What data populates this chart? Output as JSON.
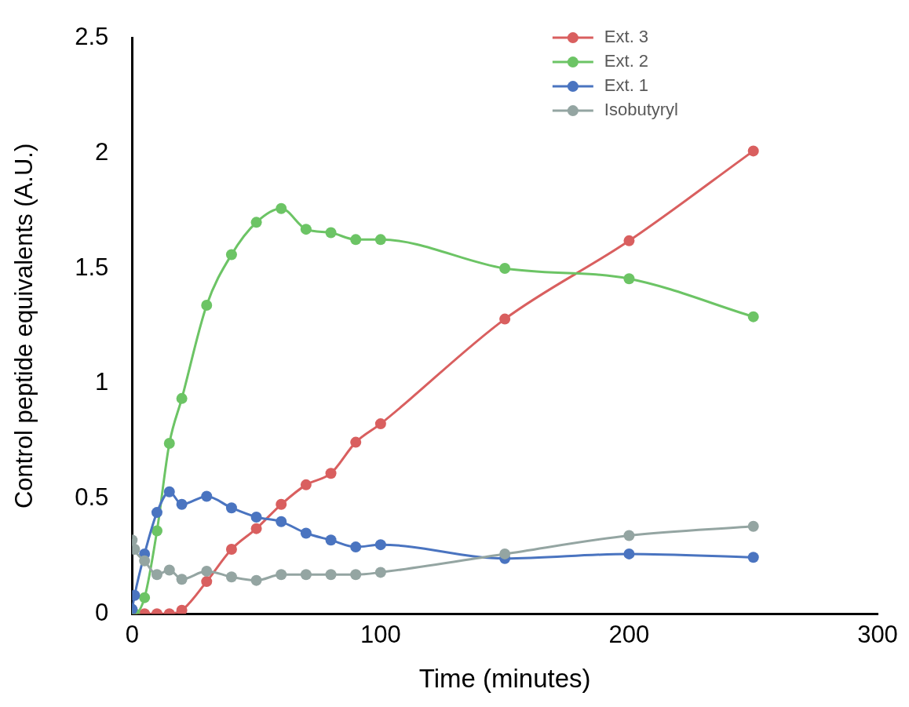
{
  "chart_data": {
    "type": "line",
    "xlabel": "Time (minutes)",
    "ylabel": "Control peptide equivalents (A.U.)",
    "x": [
      0,
      1,
      5,
      10,
      15,
      20,
      30,
      40,
      50,
      60,
      70,
      80,
      90,
      100,
      150,
      200,
      250
    ],
    "series": [
      {
        "name": "Ext. 3",
        "color": "#d95f5f",
        "values": [
          0,
          0,
          0,
          0,
          0,
          0.015,
          0.14,
          0.28,
          0.37,
          0.475,
          0.56,
          0.61,
          0.745,
          0.825,
          1.28,
          1.62,
          2.01
        ]
      },
      {
        "name": "Ext. 2",
        "color": "#6cc465",
        "values": [
          0,
          0,
          0.07,
          0.36,
          0.74,
          0.935,
          1.34,
          1.56,
          1.7,
          1.76,
          1.67,
          1.655,
          1.625,
          1.625,
          1.5,
          1.455,
          1.29
        ]
      },
      {
        "name": "Ext. 1",
        "color": "#4a74c0",
        "values": [
          0.02,
          0.08,
          0.26,
          0.44,
          0.53,
          0.475,
          0.51,
          0.46,
          0.42,
          0.4,
          0.35,
          0.32,
          0.29,
          0.3,
          0.24,
          0.26,
          0.245
        ]
      },
      {
        "name": "Isobutyryl",
        "color": "#94a5a2",
        "values": [
          0.32,
          0.28,
          0.23,
          0.17,
          0.19,
          0.15,
          0.185,
          0.16,
          0.145,
          0.17,
          0.17,
          0.17,
          0.17,
          0.18,
          0.26,
          0.34,
          0.38
        ]
      }
    ],
    "xlim": [
      0,
      300
    ],
    "xticks": [
      0,
      100,
      200,
      300
    ],
    "ylim": [
      0,
      2.5
    ],
    "yticks": [
      0,
      0.5,
      1,
      1.5,
      2,
      2.5
    ],
    "grid": false,
    "legend": "top right",
    "marker": "circle",
    "line_style": "solid"
  }
}
